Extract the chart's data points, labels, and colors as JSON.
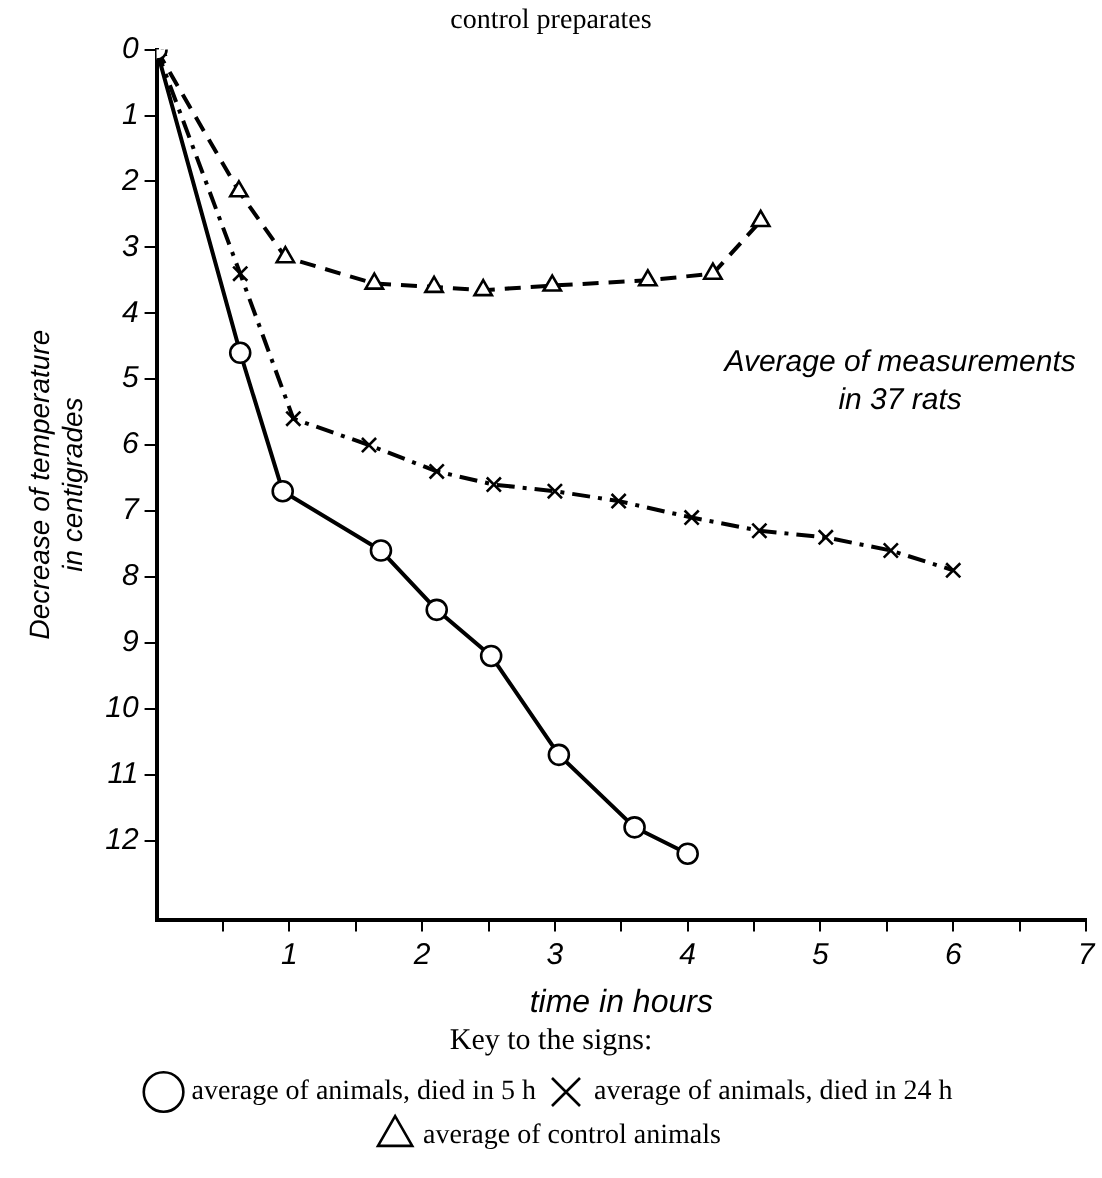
{
  "chart_data": {
    "type": "line",
    "title": "control preparates",
    "xlabel": "time in hours",
    "ylabel": "Decrease of temperature\nin centigrades",
    "legend_title": "Key to the signs:",
    "xlim": [
      0,
      7
    ],
    "xticks": [
      {
        "value": 0.5,
        "label": null
      },
      1,
      {
        "value": 1.5,
        "label": null
      },
      2,
      {
        "value": 2.5,
        "label": null
      },
      3,
      {
        "value": 3.5,
        "label": null
      },
      4,
      {
        "value": 4.5,
        "label": null
      },
      5,
      {
        "value": 5.5,
        "label": null
      },
      6,
      {
        "value": 6.5,
        "label": null
      },
      7
    ],
    "ylim": [
      13.2,
      0
    ],
    "yticks": [
      0,
      1,
      2,
      3,
      4,
      5,
      6,
      7,
      8,
      9,
      10,
      11,
      12
    ],
    "grid": false,
    "legend": "bottom",
    "annotations": [
      "Average of measurements\nin 37 rats"
    ],
    "series": [
      {
        "name": "average of animals, died in 5 h",
        "color": "#000000",
        "marker": "circle",
        "line_style": "solid",
        "x": [
          0,
          0.63,
          0.95,
          1.69,
          2.11,
          2.52,
          3.03,
          3.6,
          4.0
        ],
        "values": [
          0,
          4.6,
          6.7,
          7.6,
          8.5,
          9.2,
          10.7,
          11.8,
          12.2
        ]
      },
      {
        "name": "average of animals, died in 24 h",
        "color": "#000000",
        "marker": "cross",
        "line_style": "dashdot",
        "x": [
          0,
          0.63,
          1.03,
          1.6,
          2.11,
          2.54,
          3.0,
          3.48,
          4.03,
          4.54,
          5.04,
          5.53,
          6.0
        ],
        "values": [
          0,
          3.4,
          5.6,
          6.0,
          6.4,
          6.6,
          6.7,
          6.85,
          7.1,
          7.3,
          7.4,
          7.6,
          7.9
        ]
      },
      {
        "name": "average of control animals",
        "color": "#000000",
        "marker": "triangle",
        "line_style": "dashed",
        "x": [
          0,
          0.62,
          0.97,
          1.64,
          2.09,
          2.46,
          2.98,
          3.7,
          4.19,
          4.55
        ],
        "values": [
          0,
          2.15,
          3.15,
          3.55,
          3.6,
          3.65,
          3.58,
          3.5,
          3.4,
          2.6
        ]
      }
    ]
  }
}
